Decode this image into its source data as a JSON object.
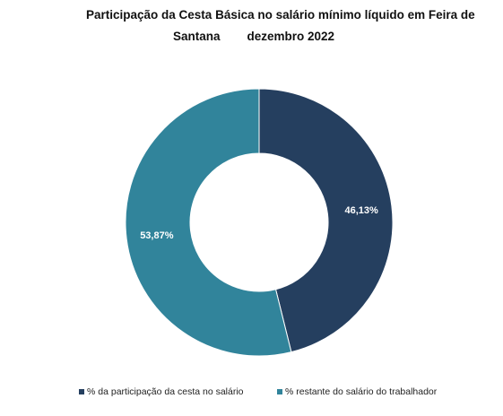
{
  "chart_data": {
    "type": "pie",
    "donut": true,
    "title_line_1": "Participação da Cesta Básica no salário mínimo líquido em Feira de",
    "title_line_2": "Santana        dezembro 2022",
    "slices": [
      {
        "label": "% da participação da cesta no salário",
        "value": 46.13,
        "value_label": "46,13%",
        "color": "#253f5f"
      },
      {
        "label": "% restante do salário do trabalhador",
        "value": 53.87,
        "value_label": "53,87%",
        "color": "#31849b"
      }
    ],
    "legend_position": "bottom"
  }
}
